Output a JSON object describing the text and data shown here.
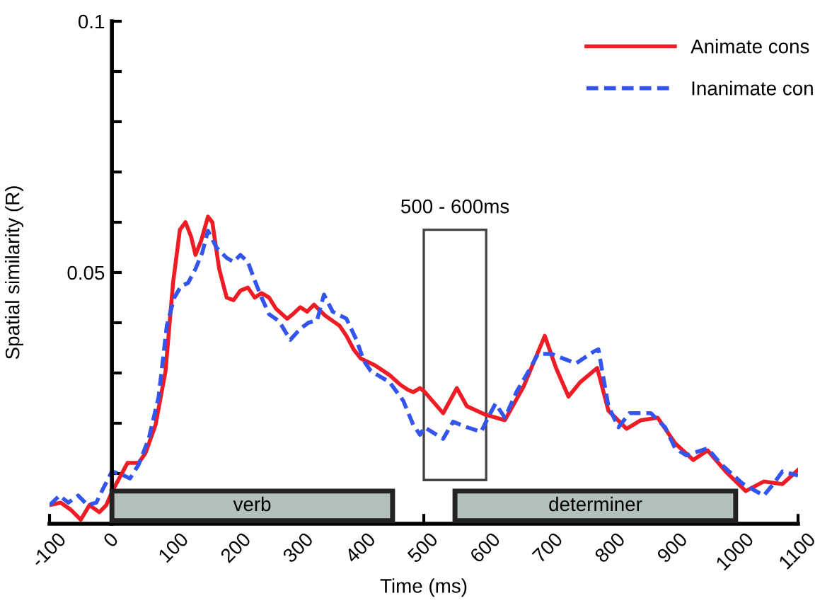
{
  "chart_data": {
    "type": "line",
    "xlabel": "Time (ms)",
    "ylabel": "Spatial similarity (R)",
    "xlim": [
      -100,
      1100
    ],
    "xticks": [
      -100,
      0,
      100,
      200,
      300,
      400,
      500,
      600,
      700,
      800,
      900,
      1000,
      1100
    ],
    "ylim": [
      0,
      0.1
    ],
    "yticks": [
      {
        "value": 0.01,
        "label": null
      },
      {
        "value": 0.02,
        "label": null
      },
      {
        "value": 0.03,
        "label": null
      },
      {
        "value": 0.04,
        "label": null
      },
      {
        "value": 0.05,
        "label": "0.05"
      },
      {
        "value": 0.06,
        "label": null
      },
      {
        "value": 0.07,
        "label": null
      },
      {
        "value": 0.08,
        "label": null
      },
      {
        "value": 0.09,
        "label": null
      },
      {
        "value": 0.1,
        "label": "0.1"
      }
    ],
    "grid": false,
    "legend": "top right",
    "series": [
      {
        "name": "Animate cons",
        "color": "#ee1c24",
        "line_style": "solid",
        "x": [
          -100,
          -82,
          -66,
          -50,
          -36,
          -20,
          -9,
          2,
          25,
          43,
          54,
          70,
          86,
          98,
          109,
          118,
          127,
          134,
          143,
          154,
          161,
          172,
          184,
          195,
          206,
          218,
          229,
          240,
          252,
          263,
          281,
          290,
          302,
          313,
          324,
          342,
          365,
          376,
          388,
          399,
          422,
          445,
          463,
          474,
          483,
          494,
          501,
          531,
          553,
          569,
          599,
          630,
          660,
          694,
          712,
          732,
          751,
          778,
          796,
          825,
          848,
          875,
          903,
          932,
          955,
          984,
          1016,
          1045,
          1075,
          1100
        ],
        "values": [
          0.0037,
          0.0042,
          0.0028,
          0.0008,
          0.0037,
          0.0023,
          0.0037,
          0.0068,
          0.0121,
          0.0121,
          0.0141,
          0.0197,
          0.0304,
          0.0479,
          0.0585,
          0.06,
          0.0571,
          0.0535,
          0.0563,
          0.0611,
          0.06,
          0.0507,
          0.045,
          0.0445,
          0.0464,
          0.047,
          0.045,
          0.0459,
          0.045,
          0.0428,
          0.0408,
          0.0417,
          0.0431,
          0.0422,
          0.0436,
          0.0414,
          0.0394,
          0.0374,
          0.0346,
          0.0329,
          0.0315,
          0.0296,
          0.0276,
          0.0267,
          0.0262,
          0.027,
          0.0263,
          0.022,
          0.027,
          0.0234,
          0.0217,
          0.0206,
          0.0273,
          0.0374,
          0.031,
          0.0253,
          0.0282,
          0.031,
          0.0225,
          0.0189,
          0.0206,
          0.0211,
          0.016,
          0.0127,
          0.0146,
          0.0104,
          0.0065,
          0.0084,
          0.0079,
          0.0107
        ]
      },
      {
        "name": "Inanimate con",
        "color": "#3355ee",
        "line_style": "dashed",
        "x": [
          -100,
          -84,
          -70,
          -54,
          -39,
          -25,
          -14,
          0,
          14,
          29,
          43,
          59,
          75,
          88,
          100,
          111,
          122,
          134,
          145,
          154,
          168,
          184,
          195,
          206,
          218,
          229,
          240,
          252,
          268,
          286,
          302,
          315,
          329,
          340,
          354,
          376,
          392,
          404,
          415,
          445,
          467,
          483,
          494,
          501,
          531,
          547,
          569,
          592,
          603,
          615,
          630,
          649,
          671,
          683,
          705,
          723,
          744,
          773,
          780,
          796,
          812,
          830,
          864,
          887,
          903,
          921,
          955,
          977,
          1011,
          1045,
          1061,
          1075,
          1100
        ],
        "values": [
          0.0037,
          0.0056,
          0.0042,
          0.0056,
          0.0037,
          0.0042,
          0.007,
          0.0104,
          0.0099,
          0.009,
          0.0118,
          0.0169,
          0.0253,
          0.0394,
          0.045,
          0.0473,
          0.0479,
          0.0507,
          0.054,
          0.0583,
          0.0549,
          0.0529,
          0.0521,
          0.0535,
          0.0521,
          0.0484,
          0.045,
          0.0417,
          0.0403,
          0.0366,
          0.0388,
          0.04,
          0.0405,
          0.0456,
          0.0422,
          0.0408,
          0.0366,
          0.0324,
          0.0304,
          0.0282,
          0.0245,
          0.0197,
          0.0177,
          0.0192,
          0.0169,
          0.0203,
          0.0192,
          0.0183,
          0.0211,
          0.0239,
          0.0211,
          0.0263,
          0.031,
          0.0338,
          0.0338,
          0.0329,
          0.0319,
          0.0343,
          0.0347,
          0.0234,
          0.0192,
          0.022,
          0.022,
          0.0192,
          0.015,
          0.0136,
          0.015,
          0.0118,
          0.008,
          0.0056,
          0.008,
          0.0104,
          0.0096
        ]
      }
    ],
    "bands": [
      {
        "axis": "x",
        "from": 0,
        "to": 450,
        "label": "verb",
        "color": "#b3c0bc"
      },
      {
        "axis": "x",
        "from": 550,
        "to": 1000,
        "label": "determiner",
        "color": "#b3c0bc"
      },
      {
        "axis": "x",
        "from": 500,
        "to": 600,
        "label": "500 - 600ms",
        "color": "#ffffff"
      }
    ]
  }
}
